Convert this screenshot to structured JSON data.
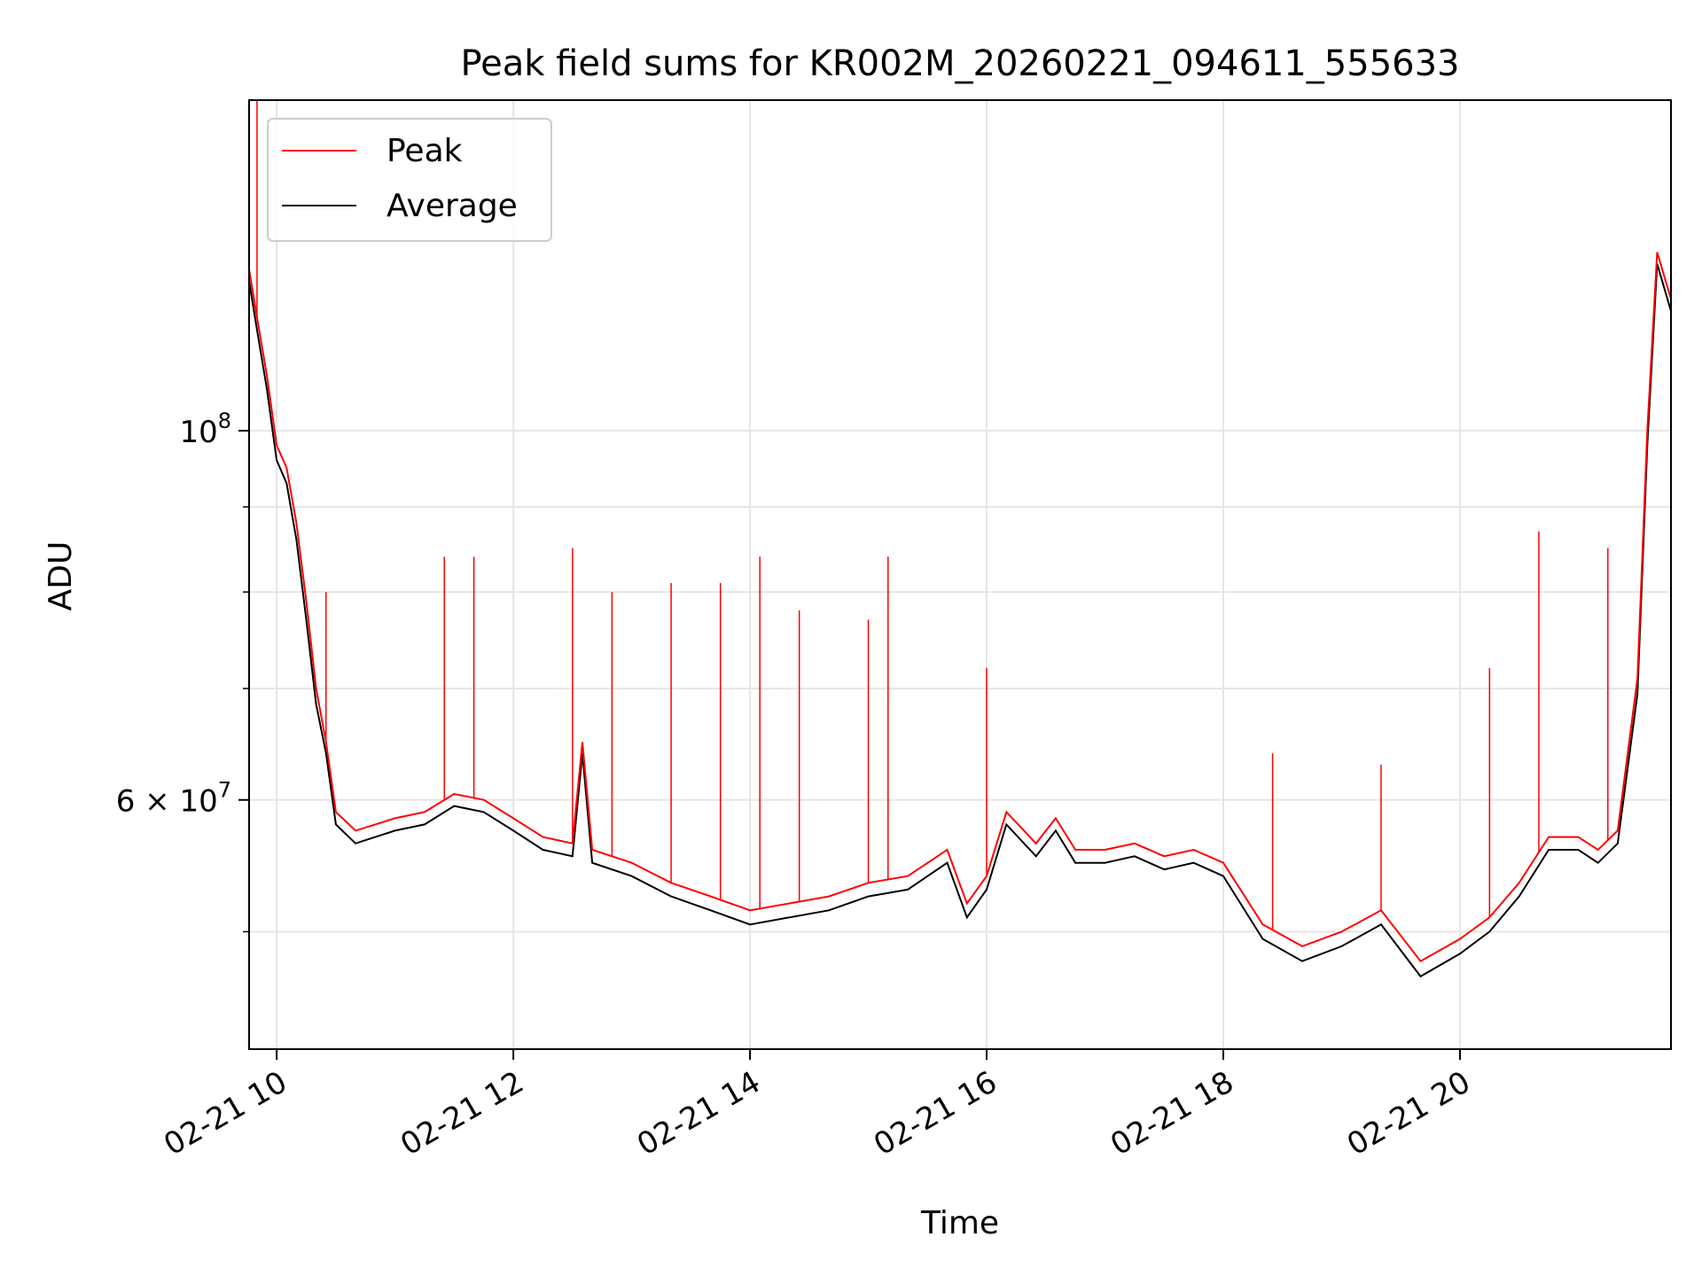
{
  "chart_data": {
    "type": "line",
    "title": "Peak field sums for KR002M_20260221_094611_555633",
    "xlabel": "Time",
    "ylabel": "ADU",
    "yscale": "log",
    "grid": true,
    "legend_position": "upper-left",
    "xlim": [
      "2026-02-21 09:46",
      "2026-02-21 21:47"
    ],
    "ylim": [
      42500000,
      158000000
    ],
    "x_ticks": [
      {
        "value": "2026-02-21 10:00",
        "label": "02-21 10"
      },
      {
        "value": "2026-02-21 12:00",
        "label": "02-21 12"
      },
      {
        "value": "2026-02-21 14:00",
        "label": "02-21 14"
      },
      {
        "value": "2026-02-21 16:00",
        "label": "02-21 16"
      },
      {
        "value": "2026-02-21 18:00",
        "label": "02-21 18"
      },
      {
        "value": "2026-02-21 20:00",
        "label": "02-21 20"
      }
    ],
    "y_major_ticks": [
      {
        "value": 100000000,
        "label_base": "10",
        "label_exp": "8"
      },
      {
        "value": 60000000,
        "label_base": "6 × 10",
        "label_exp": "7"
      }
    ],
    "y_minor_ticks": [
      50000000,
      70000000,
      80000000,
      90000000
    ],
    "series": [
      {
        "name": "Peak",
        "color": "#ff0000",
        "x": [
          "2026-02-21 09:46",
          "2026-02-21 09:50",
          "2026-02-21 09:55",
          "2026-02-21 10:00",
          "2026-02-21 10:05",
          "2026-02-21 10:10",
          "2026-02-21 10:15",
          "2026-02-21 10:20",
          "2026-02-21 10:25",
          "2026-02-21 10:30",
          "2026-02-21 10:40",
          "2026-02-21 10:50",
          "2026-02-21 11:00",
          "2026-02-21 11:15",
          "2026-02-21 11:30",
          "2026-02-21 11:45",
          "2026-02-21 12:00",
          "2026-02-21 12:15",
          "2026-02-21 12:30",
          "2026-02-21 12:35",
          "2026-02-21 12:40",
          "2026-02-21 13:00",
          "2026-02-21 13:20",
          "2026-02-21 13:40",
          "2026-02-21 14:00",
          "2026-02-21 14:20",
          "2026-02-21 14:40",
          "2026-02-21 15:00",
          "2026-02-21 15:20",
          "2026-02-21 15:40",
          "2026-02-21 15:50",
          "2026-02-21 16:00",
          "2026-02-21 16:10",
          "2026-02-21 16:25",
          "2026-02-21 16:35",
          "2026-02-21 16:45",
          "2026-02-21 17:00",
          "2026-02-21 17:15",
          "2026-02-21 17:30",
          "2026-02-21 17:45",
          "2026-02-21 18:00",
          "2026-02-21 18:20",
          "2026-02-21 18:40",
          "2026-02-21 19:00",
          "2026-02-21 19:20",
          "2026-02-21 19:40",
          "2026-02-21 20:00",
          "2026-02-21 20:15",
          "2026-02-21 20:30",
          "2026-02-21 20:45",
          "2026-02-21 21:00",
          "2026-02-21 21:10",
          "2026-02-21 21:20",
          "2026-02-21 21:30",
          "2026-02-21 21:35",
          "2026-02-21 21:40",
          "2026-02-21 21:47"
        ],
        "y": [
          125000000,
          117000000,
          108000000,
          98000000,
          95000000,
          88000000,
          79000000,
          70000000,
          65000000,
          59000000,
          57500000,
          58000000,
          58500000,
          59000000,
          60500000,
          60000000,
          58500000,
          57000000,
          56500000,
          65000000,
          56000000,
          55000000,
          53500000,
          52500000,
          51500000,
          52000000,
          52500000,
          53500000,
          54000000,
          56000000,
          52000000,
          54000000,
          59000000,
          56500000,
          58500000,
          56000000,
          56000000,
          56500000,
          55500000,
          56000000,
          55000000,
          50500000,
          49000000,
          50000000,
          51500000,
          48000000,
          49500000,
          51000000,
          53500000,
          57000000,
          57000000,
          56000000,
          57500000,
          71000000,
          100000000,
          128000000,
          120000000
        ]
      },
      {
        "name": "Average",
        "color": "#000000",
        "x": [
          "2026-02-21 09:46",
          "2026-02-21 09:50",
          "2026-02-21 09:55",
          "2026-02-21 10:00",
          "2026-02-21 10:05",
          "2026-02-21 10:10",
          "2026-02-21 10:15",
          "2026-02-21 10:20",
          "2026-02-21 10:25",
          "2026-02-21 10:30",
          "2026-02-21 10:40",
          "2026-02-21 10:50",
          "2026-02-21 11:00",
          "2026-02-21 11:15",
          "2026-02-21 11:30",
          "2026-02-21 11:45",
          "2026-02-21 12:00",
          "2026-02-21 12:15",
          "2026-02-21 12:30",
          "2026-02-21 12:35",
          "2026-02-21 12:40",
          "2026-02-21 13:00",
          "2026-02-21 13:20",
          "2026-02-21 13:40",
          "2026-02-21 14:00",
          "2026-02-21 14:20",
          "2026-02-21 14:40",
          "2026-02-21 15:00",
          "2026-02-21 15:20",
          "2026-02-21 15:40",
          "2026-02-21 15:50",
          "2026-02-21 16:00",
          "2026-02-21 16:10",
          "2026-02-21 16:25",
          "2026-02-21 16:35",
          "2026-02-21 16:45",
          "2026-02-21 17:00",
          "2026-02-21 17:15",
          "2026-02-21 17:30",
          "2026-02-21 17:45",
          "2026-02-21 18:00",
          "2026-02-21 18:20",
          "2026-02-21 18:40",
          "2026-02-21 19:00",
          "2026-02-21 19:20",
          "2026-02-21 19:40",
          "2026-02-21 20:00",
          "2026-02-21 20:15",
          "2026-02-21 20:30",
          "2026-02-21 20:45",
          "2026-02-21 21:00",
          "2026-02-21 21:10",
          "2026-02-21 21:20",
          "2026-02-21 21:30",
          "2026-02-21 21:35",
          "2026-02-21 21:40",
          "2026-02-21 21:47"
        ],
        "y": [
          123000000,
          115000000,
          106000000,
          96000000,
          93000000,
          86000000,
          77000000,
          68500000,
          64000000,
          58000000,
          56500000,
          57000000,
          57500000,
          58000000,
          59500000,
          59000000,
          57500000,
          56000000,
          55500000,
          64000000,
          55000000,
          54000000,
          52500000,
          51500000,
          50500000,
          51000000,
          51500000,
          52500000,
          53000000,
          55000000,
          51000000,
          53000000,
          58000000,
          55500000,
          57500000,
          55000000,
          55000000,
          55500000,
          54500000,
          55000000,
          54000000,
          49500000,
          48000000,
          49000000,
          50500000,
          47000000,
          48500000,
          50000000,
          52500000,
          56000000,
          56000000,
          55000000,
          56500000,
          69500000,
          98000000,
          126000000,
          118000000
        ]
      }
    ],
    "peak_spikes": [
      {
        "x": "2026-02-21 09:50",
        "y": 158000000
      },
      {
        "x": "2026-02-21 10:25",
        "y": 80000000
      },
      {
        "x": "2026-02-21 11:25",
        "y": 84000000
      },
      {
        "x": "2026-02-21 11:40",
        "y": 84000000
      },
      {
        "x": "2026-02-21 12:30",
        "y": 85000000
      },
      {
        "x": "2026-02-21 12:50",
        "y": 80000000
      },
      {
        "x": "2026-02-21 13:20",
        "y": 81000000
      },
      {
        "x": "2026-02-21 13:45",
        "y": 81000000
      },
      {
        "x": "2026-02-21 14:05",
        "y": 84000000
      },
      {
        "x": "2026-02-21 14:25",
        "y": 78000000
      },
      {
        "x": "2026-02-21 15:00",
        "y": 77000000
      },
      {
        "x": "2026-02-21 15:10",
        "y": 84000000
      },
      {
        "x": "2026-02-21 16:00",
        "y": 72000000
      },
      {
        "x": "2026-02-21 18:25",
        "y": 64000000
      },
      {
        "x": "2026-02-21 19:20",
        "y": 63000000
      },
      {
        "x": "2026-02-21 20:15",
        "y": 72000000
      },
      {
        "x": "2026-02-21 20:40",
        "y": 87000000
      },
      {
        "x": "2026-02-21 21:15",
        "y": 85000000
      }
    ]
  }
}
